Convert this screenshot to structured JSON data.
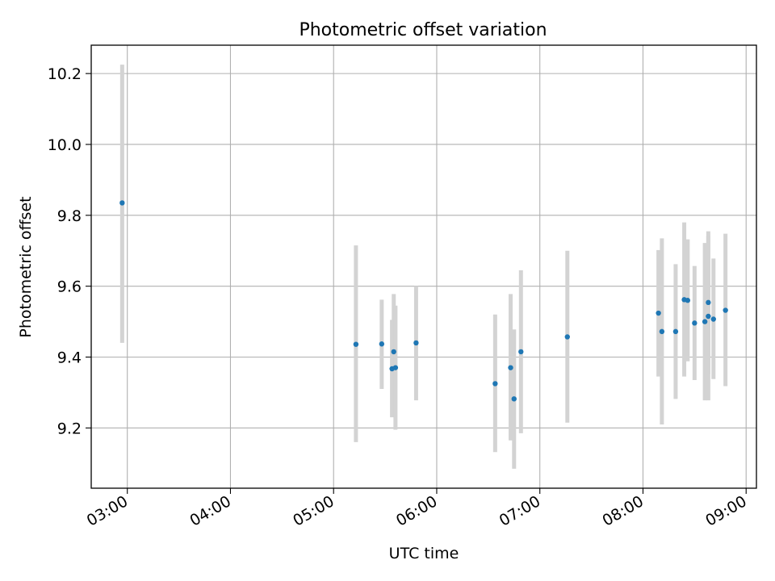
{
  "chart_data": {
    "type": "scatter",
    "title": "Photometric offset variation",
    "xlabel": "UTC time",
    "ylabel": "Photometric offset",
    "x_ticks": [
      "03:00",
      "04:00",
      "05:00",
      "06:00",
      "07:00",
      "08:00",
      "09:00"
    ],
    "x_tick_hours": [
      3,
      4,
      5,
      6,
      7,
      8,
      9
    ],
    "y_ticks": [
      "9.2",
      "9.4",
      "9.6",
      "9.8",
      "10.0",
      "10.2"
    ],
    "y_tick_values": [
      9.2,
      9.4,
      9.6,
      9.8,
      10.0,
      10.2
    ],
    "xlim": [
      "02:39",
      "09:06"
    ],
    "ylim": [
      9.03,
      10.28
    ],
    "grid": true,
    "marker_color": "#1f77b4",
    "errorbar_color": "#d3d3d3",
    "points": [
      {
        "time": "02:57",
        "y": 9.835,
        "ylow": 9.44,
        "yhigh": 10.225
      },
      {
        "time": "05:13",
        "y": 9.436,
        "ylow": 9.16,
        "yhigh": 9.715
      },
      {
        "time": "05:28",
        "y": 9.437,
        "ylow": 9.31,
        "yhigh": 9.562
      },
      {
        "time": "05:34",
        "y": 9.367,
        "ylow": 9.23,
        "yhigh": 9.505
      },
      {
        "time": "05:35",
        "y": 9.415,
        "ylow": 9.255,
        "yhigh": 9.578
      },
      {
        "time": "05:36",
        "y": 9.37,
        "ylow": 9.195,
        "yhigh": 9.545
      },
      {
        "time": "05:48",
        "y": 9.44,
        "ylow": 9.278,
        "yhigh": 9.6
      },
      {
        "time": "06:34",
        "y": 9.325,
        "ylow": 9.132,
        "yhigh": 9.52
      },
      {
        "time": "06:43",
        "y": 9.37,
        "ylow": 9.165,
        "yhigh": 9.578
      },
      {
        "time": "06:45",
        "y": 9.282,
        "ylow": 9.085,
        "yhigh": 9.478
      },
      {
        "time": "06:49",
        "y": 9.415,
        "ylow": 9.185,
        "yhigh": 9.645
      },
      {
        "time": "07:16",
        "y": 9.457,
        "ylow": 9.215,
        "yhigh": 9.7
      },
      {
        "time": "08:09",
        "y": 9.524,
        "ylow": 9.345,
        "yhigh": 9.702
      },
      {
        "time": "08:11",
        "y": 9.472,
        "ylow": 9.21,
        "yhigh": 9.735
      },
      {
        "time": "08:19",
        "y": 9.472,
        "ylow": 9.282,
        "yhigh": 9.662
      },
      {
        "time": "08:24",
        "y": 9.562,
        "ylow": 9.345,
        "yhigh": 9.78
      },
      {
        "time": "08:26",
        "y": 9.56,
        "ylow": 9.388,
        "yhigh": 9.732
      },
      {
        "time": "08:30",
        "y": 9.496,
        "ylow": 9.335,
        "yhigh": 9.657
      },
      {
        "time": "08:36",
        "y": 9.5,
        "ylow": 9.278,
        "yhigh": 9.722
      },
      {
        "time": "08:38",
        "y": 9.554,
        "ylow": 9.353,
        "yhigh": 9.755
      },
      {
        "time": "08:38",
        "y": 9.515,
        "ylow": 9.278,
        "yhigh": 9.742
      },
      {
        "time": "08:41",
        "y": 9.507,
        "ylow": 9.338,
        "yhigh": 9.678
      },
      {
        "time": "08:48",
        "y": 9.532,
        "ylow": 9.318,
        "yhigh": 9.748
      }
    ]
  }
}
